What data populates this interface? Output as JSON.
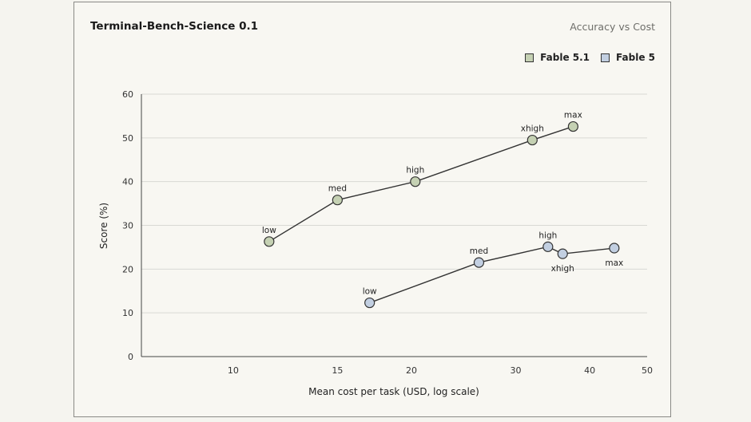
{
  "colors": {
    "fable51": "#c5d1b3",
    "fable5": "#c2cfe1",
    "line": "#333333",
    "grid": "#d9d9d4",
    "axis": "#444444"
  },
  "chart_data": {
    "type": "line",
    "title": "Terminal-Bench-Science 0.1",
    "subtitle": "Accuracy vs Cost",
    "xlabel": "Mean cost per task (USD, log scale)",
    "ylabel": "Score (%)",
    "x_scale": "log",
    "xlim": [
      7,
      50
    ],
    "ylim": [
      0,
      60
    ],
    "x_ticks": [
      10,
      15,
      20,
      30,
      40,
      50
    ],
    "y_ticks": [
      0,
      10,
      20,
      30,
      40,
      50,
      60
    ],
    "grid": "horizontal",
    "legend_position": "top-right",
    "series": [
      {
        "name": "Fable 5.1",
        "color": "#c5d1b3",
        "points": [
          {
            "label": "low",
            "x": 11.5,
            "y": 26.3,
            "label_pos": "above"
          },
          {
            "label": "med",
            "x": 15,
            "y": 35.8,
            "label_pos": "above"
          },
          {
            "label": "high",
            "x": 20.3,
            "y": 40.0,
            "label_pos": "above"
          },
          {
            "label": "xhigh",
            "x": 32,
            "y": 49.5,
            "label_pos": "above"
          },
          {
            "label": "max",
            "x": 37.5,
            "y": 52.6,
            "label_pos": "above"
          }
        ]
      },
      {
        "name": "Fable 5",
        "color": "#c2cfe1",
        "points": [
          {
            "label": "low",
            "x": 17,
            "y": 12.3,
            "label_pos": "above"
          },
          {
            "label": "med",
            "x": 26,
            "y": 21.5,
            "label_pos": "above"
          },
          {
            "label": "high",
            "x": 34,
            "y": 25.1,
            "label_pos": "above"
          },
          {
            "label": "xhigh",
            "x": 36,
            "y": 23.5,
            "label_pos": "below"
          },
          {
            "label": "max",
            "x": 44,
            "y": 24.8,
            "label_pos": "below"
          }
        ]
      }
    ]
  }
}
